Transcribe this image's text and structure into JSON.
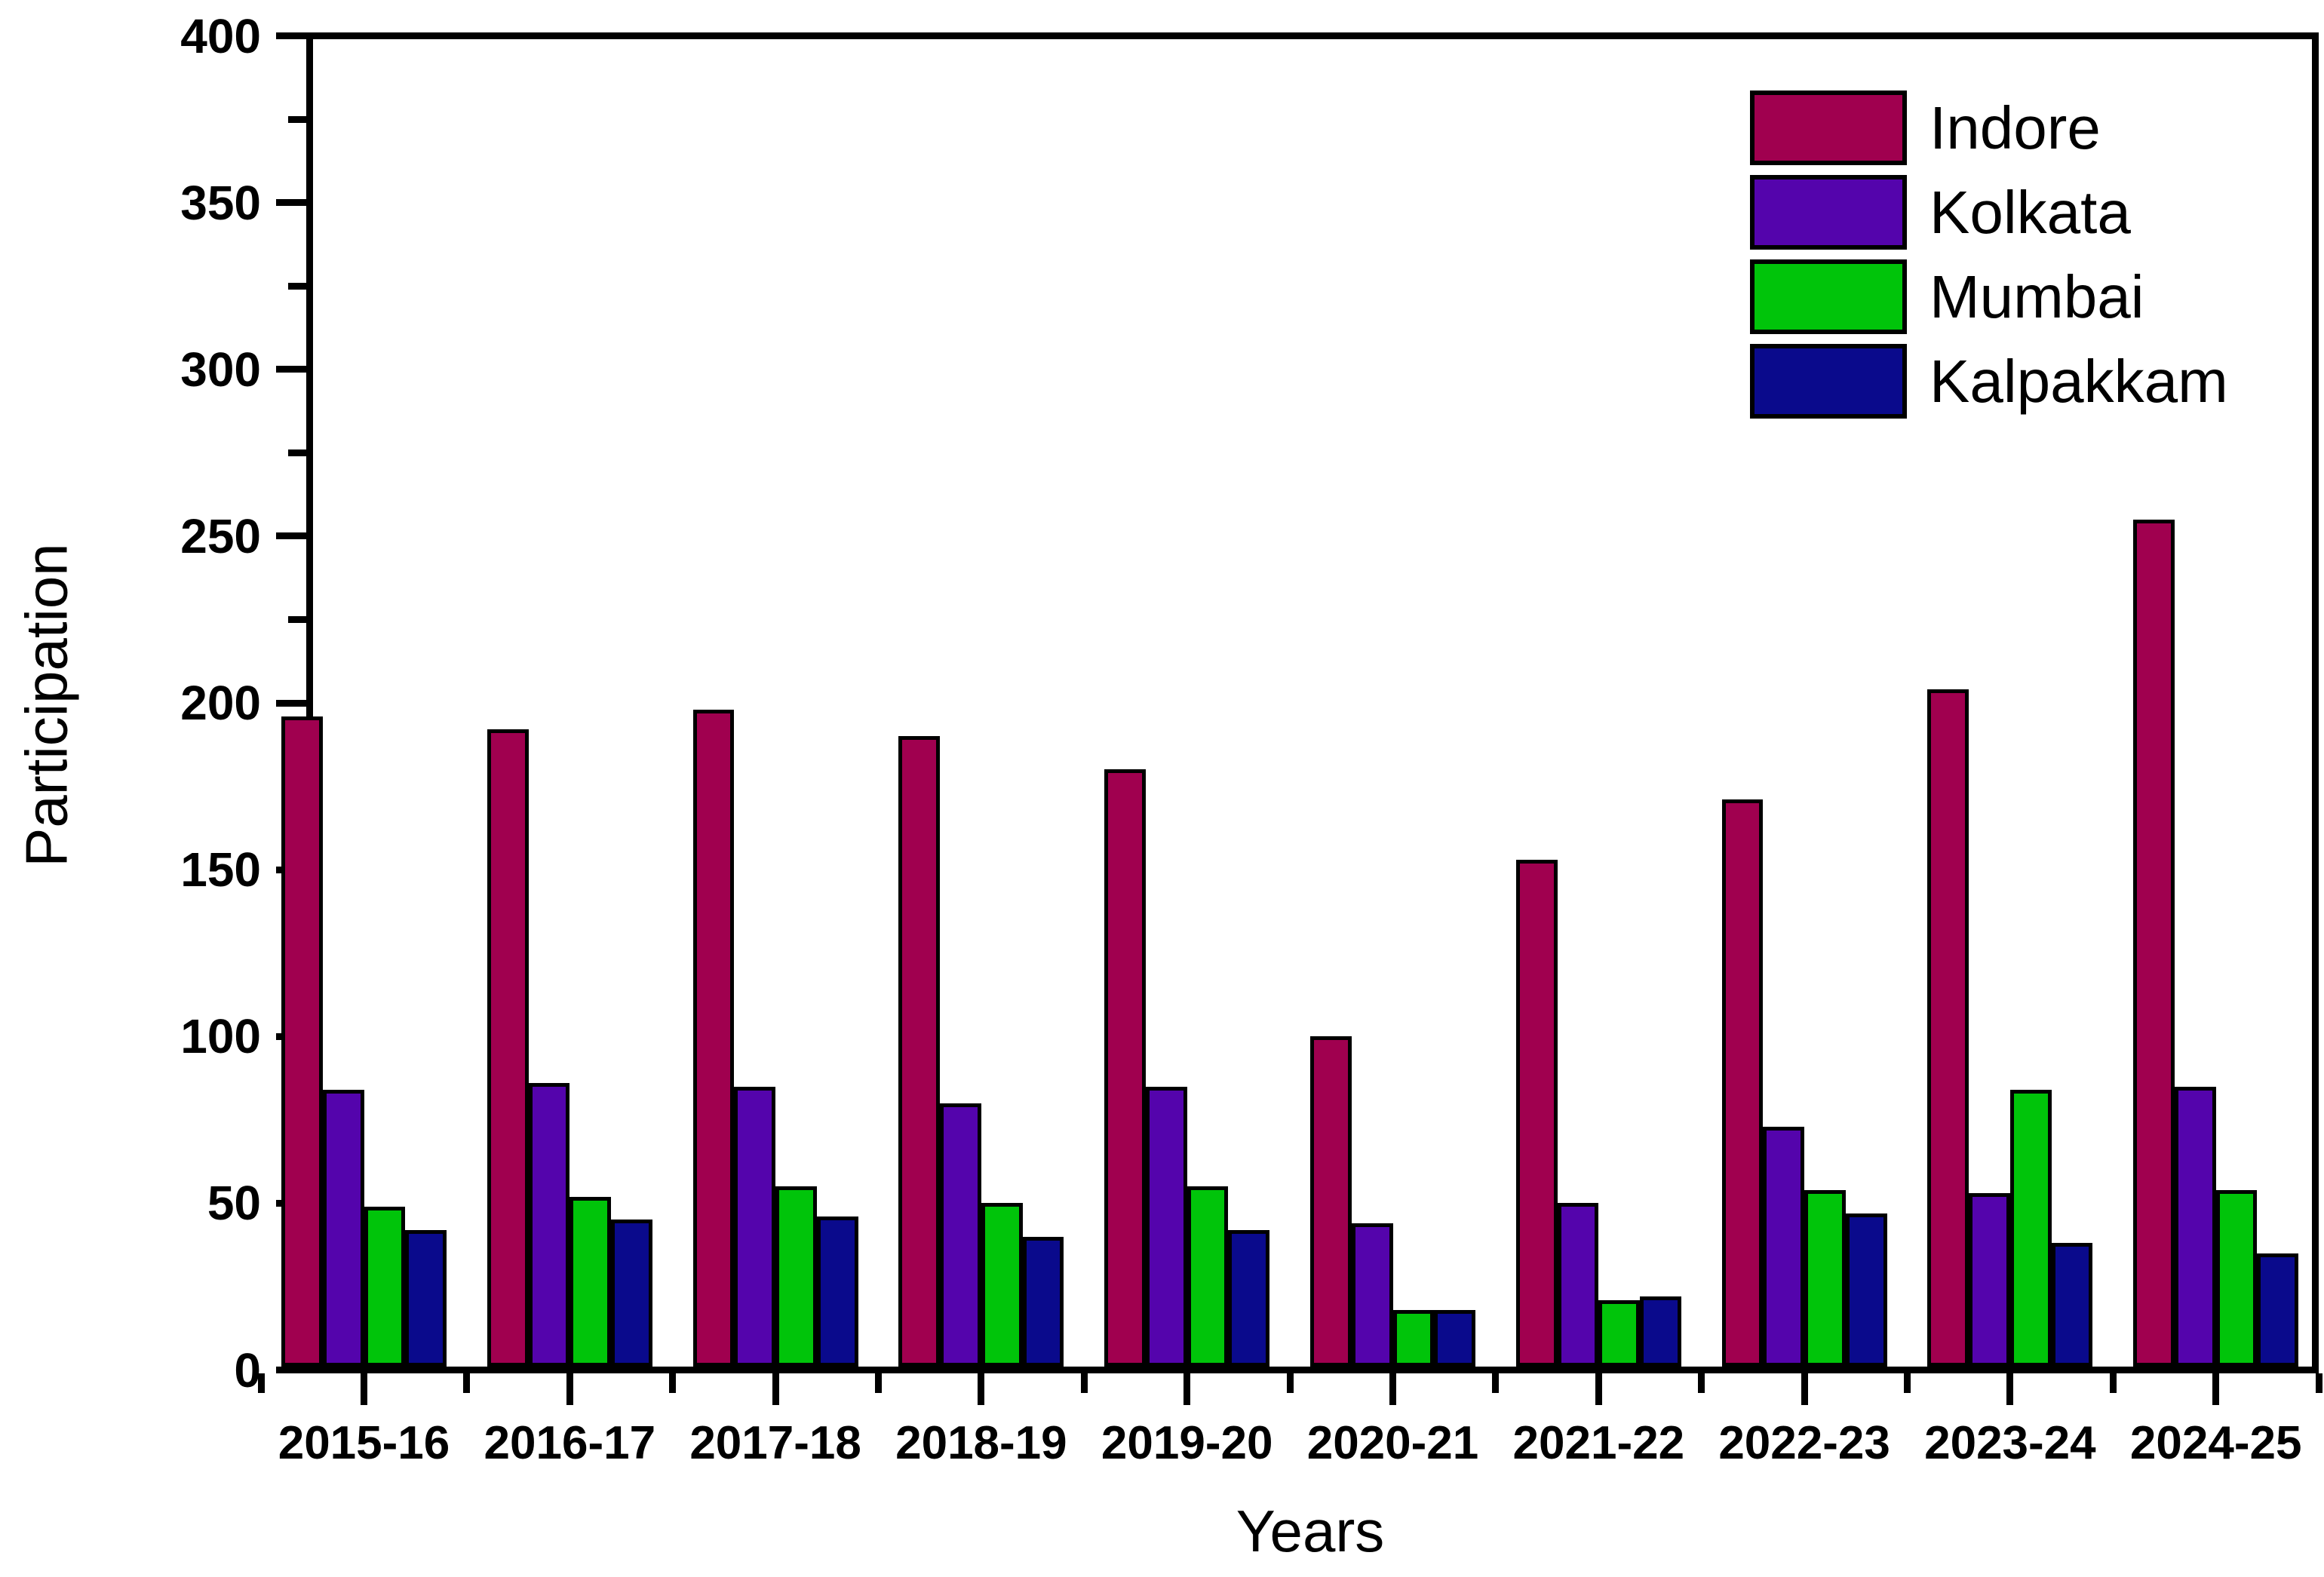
{
  "chart_data": {
    "type": "bar",
    "title": "",
    "xlabel": "Years",
    "ylabel": "Participation",
    "ylim": [
      0,
      400
    ],
    "yticks": [
      0,
      50,
      100,
      150,
      200,
      250,
      300,
      350,
      400
    ],
    "yminor_step": 25,
    "grid": false,
    "legend_position": "top-right",
    "bar_border_color": "#000000",
    "categories": [
      "2015-16",
      "2016-17",
      "2017-18",
      "2018-19",
      "2019-20",
      "2020-21",
      "2021-22",
      "2022-23",
      "2023-24",
      "2024-25"
    ],
    "series": [
      {
        "name": "Indore",
        "color": "#A0004F",
        "values": [
          196,
          192,
          198,
          190,
          180,
          100,
          153,
          171,
          204,
          255
        ]
      },
      {
        "name": "Kolkata",
        "color": "#5404AC",
        "values": [
          84,
          86,
          85,
          80,
          85,
          44,
          50,
          73,
          53,
          85
        ]
      },
      {
        "name": "Mumbai",
        "color": "#00C40A",
        "values": [
          49,
          52,
          55,
          50,
          55,
          18,
          21,
          54,
          84,
          54
        ]
      },
      {
        "name": "Kalpakkam",
        "color": "#0A0A8C",
        "values": [
          42,
          45,
          46,
          40,
          42,
          18,
          22,
          47,
          38,
          35
        ]
      }
    ]
  }
}
